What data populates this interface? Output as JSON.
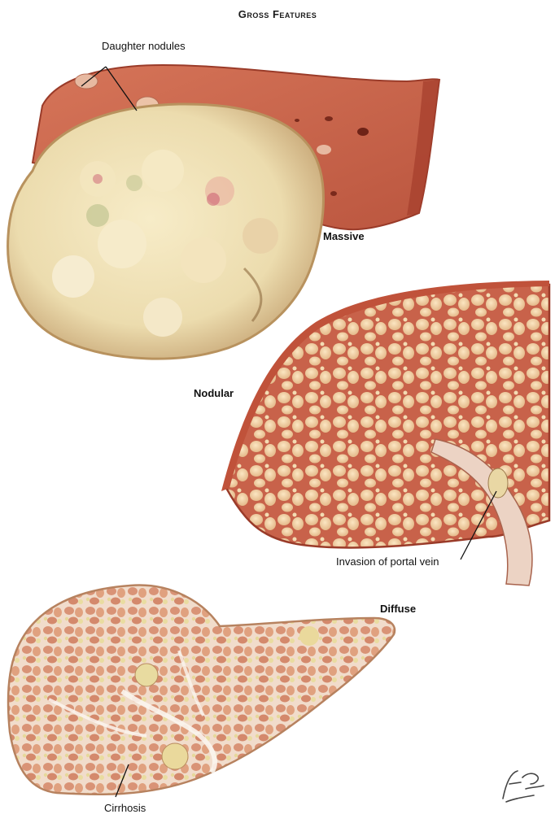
{
  "figure": {
    "title": "Gross Features",
    "panels": [
      {
        "heading": "Massive",
        "callout": "Daughter nodules"
      },
      {
        "heading": "Nodular",
        "callout": "Invasion of portal vein"
      },
      {
        "heading": "Diffuse",
        "callout": "Cirrhosis"
      }
    ],
    "signature": "F. Netter M.D."
  },
  "colors": {
    "liver_red": "#c9624a",
    "liver_dark": "#a8412e",
    "tumor_cream": "#efe0b6",
    "nodule_cream": "#f0d7a8",
    "cirrhosis_pink": "#e3a78c"
  }
}
